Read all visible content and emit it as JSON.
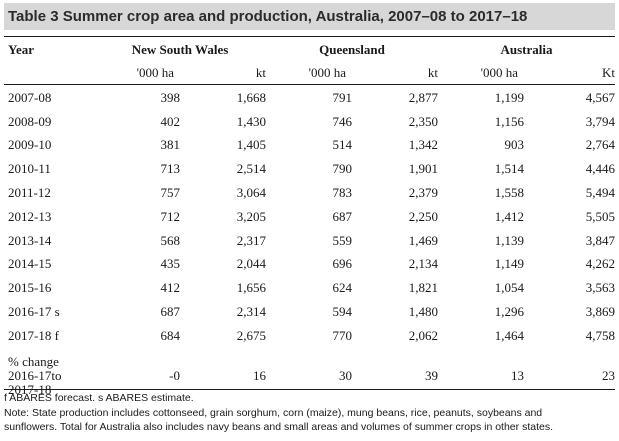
{
  "title": "Table 3 Summer crop area and production, Australia, 2007–08 to 2017–18",
  "headers": {
    "year": "Year",
    "nsw": "New South Wales",
    "qld": "Queensland",
    "aus": "Australia"
  },
  "units": [
    "'000 ha",
    "kt",
    "'000 ha",
    "kt",
    "'000 ha",
    "Kt"
  ],
  "rows": [
    {
      "year": "2007-08",
      "v": [
        "398",
        "1,668",
        "791",
        "2,877",
        "1,199",
        "4,567"
      ]
    },
    {
      "year": "2008-09",
      "v": [
        "402",
        "1,430",
        "746",
        "2,350",
        "1,156",
        "3,794"
      ]
    },
    {
      "year": "2009-10",
      "v": [
        "381",
        "1,405",
        "514",
        "1,342",
        "903",
        "2,764"
      ]
    },
    {
      "year": "2010-11",
      "v": [
        "713",
        "2,514",
        "790",
        "1,901",
        "1,514",
        "4,446"
      ]
    },
    {
      "year": "2011-12",
      "v": [
        "757",
        "3,064",
        "783",
        "2,379",
        "1,558",
        "5,494"
      ]
    },
    {
      "year": "2012-13",
      "v": [
        "712",
        "3,205",
        "687",
        "2,250",
        "1,412",
        "5,505"
      ]
    },
    {
      "year": "2013-14",
      "v": [
        "568",
        "2,317",
        "559",
        "1,469",
        "1,139",
        "3,847"
      ]
    },
    {
      "year": "2014-15",
      "v": [
        "435",
        "2,044",
        "696",
        "2,134",
        "1,149",
        "4,262"
      ]
    },
    {
      "year": "2015-16",
      "v": [
        "412",
        "1,656",
        "624",
        "1,821",
        "1,054",
        "3,563"
      ]
    },
    {
      "year": "2016-17 s",
      "v": [
        "687",
        "2,314",
        "594",
        "1,480",
        "1,296",
        "3,869"
      ]
    },
    {
      "year": "2017-18 f",
      "v": [
        "684",
        "2,675",
        "770",
        "2,062",
        "1,464",
        "4,758"
      ]
    }
  ],
  "pct_change": {
    "label_lines": [
      "% change",
      "2016-17to",
      "2017-18"
    ],
    "v": [
      "-0",
      "16",
      "30",
      "39",
      "13",
      "23"
    ]
  },
  "notes": {
    "line1": "f ABARES forecast. s ABARES estimate.",
    "line2": "Note: State production includes cottonseed, grain sorghum, corn (maize), mung beans, rice, peanuts, soybeans and",
    "line3": "sunflowers. Total for Australia also includes navy beans and small areas and volumes of summer crops in other states."
  }
}
